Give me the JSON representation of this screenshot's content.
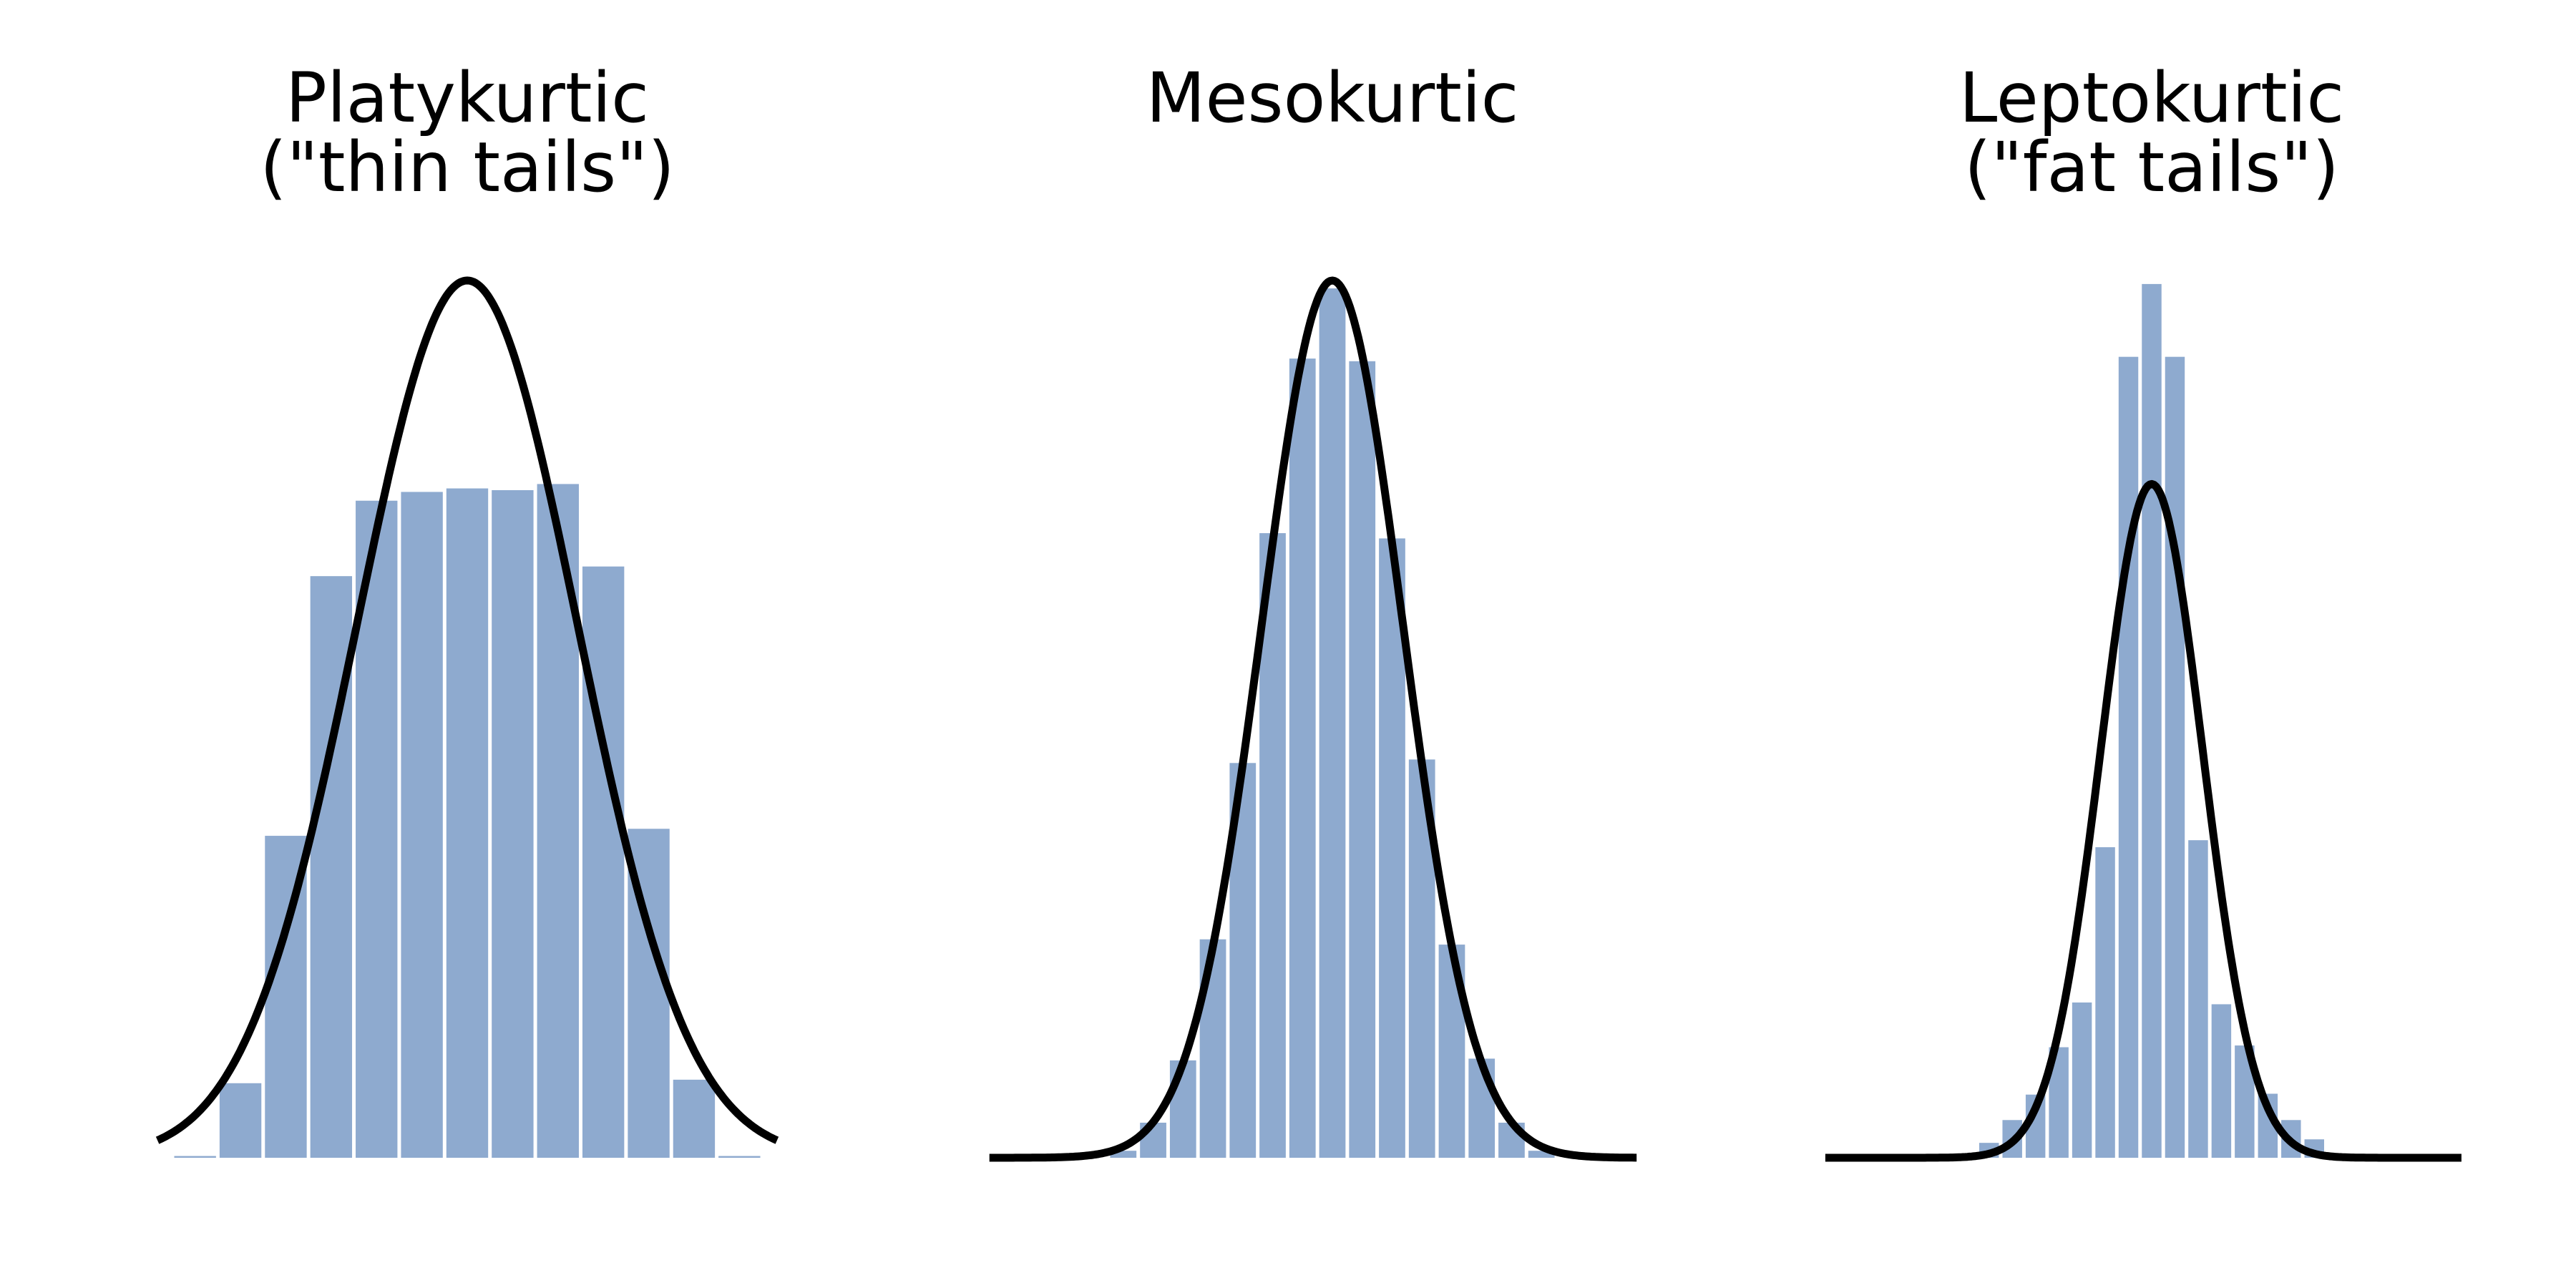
{
  "chart_data": [
    {
      "type": "histogram",
      "title": [
        "Platykurtic",
        "(\"thin tails\")"
      ],
      "bins": [
        -2.665,
        -2.255,
        -1.845,
        -1.435,
        -1.025,
        -0.615,
        -0.205,
        0.205,
        0.615,
        1.025,
        1.435,
        1.845,
        2.255,
        2.665
      ],
      "counts": [
        0.2,
        8.5,
        36.7,
        66.3,
        74.9,
        75.9,
        76.3,
        76.1,
        76.8,
        67.4,
        37.5,
        8.9,
        0.2
      ],
      "color": "#8eaacf",
      "xlim": [
        -2.8,
        2.8
      ],
      "ylim": [
        0,
        100
      ],
      "curve": {
        "mean": 0,
        "sd": 1,
        "peak": 100,
        "color": "#000000"
      }
    },
    {
      "type": "histogram",
      "title": [
        "Mesokurtic"
      ],
      "bins": [
        -2.025,
        -1.755,
        -1.485,
        -1.215,
        -0.945,
        -0.675,
        -0.405,
        -0.135,
        0.135,
        0.405,
        0.675,
        0.945,
        1.215,
        1.485,
        1.755,
        2.025
      ],
      "counts": [
        0.8,
        4.0,
        11.1,
        24.9,
        45.0,
        71.2,
        91.1,
        99.1,
        90.8,
        70.6,
        45.4,
        24.3,
        11.3,
        4.0,
        0.8
      ],
      "color": "#8eaacf",
      "xlim": [
        -3.1,
        2.75
      ],
      "ylim": [
        0,
        100
      ],
      "curve": {
        "mean": 0,
        "sd": 0.64,
        "peak": 100,
        "color": "#000000"
      }
    },
    {
      "type": "histogram",
      "title": [
        "Leptokurtic",
        "(\"fat tails\")"
      ],
      "bins": [
        -1.575,
        -1.365,
        -1.155,
        -0.945,
        -0.735,
        -0.525,
        -0.315,
        -0.105,
        0.105,
        0.315,
        0.525,
        0.735,
        0.945,
        1.155,
        1.365,
        1.575
      ],
      "counts": [
        1.7,
        4.3,
        7.2,
        12.6,
        17.7,
        35.4,
        91.3,
        99.6,
        91.3,
        36.2,
        17.5,
        12.8,
        7.3,
        4.3,
        2.1
      ],
      "color": "#8eaacf",
      "xlim": [
        -2.95,
        2.8
      ],
      "ylim": [
        0,
        100
      ],
      "curve": {
        "mean": 0,
        "sd": 0.46,
        "peak": 76.8,
        "color": "#000000"
      }
    }
  ]
}
